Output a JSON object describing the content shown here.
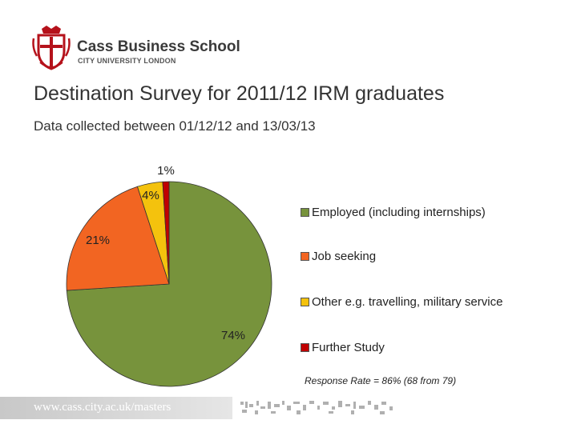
{
  "logo": {
    "name": "Cass Business School",
    "sub": "CITY UNIVERSITY LONDON"
  },
  "header": {
    "title": "Destination Survey for 2011/12 IRM graduates",
    "subtitle": "Data collected between 01/12/12 and 13/03/13"
  },
  "chart_data": {
    "type": "pie",
    "title": "",
    "slices": [
      {
        "name": "Employed (including internships)",
        "value": 74,
        "label": "74%",
        "color": "#77933c"
      },
      {
        "name": "Job seeking",
        "value": 21,
        "label": "21%",
        "color": "#f26522"
      },
      {
        "name": "Other e.g. travelling, military service",
        "value": 4,
        "label": "4%",
        "color": "#f4c20d"
      },
      {
        "name": "Further Study",
        "value": 1,
        "label": "1%",
        "color": "#c00000"
      }
    ],
    "legend_position": "right",
    "note": "Response Rate = 86% (68 from 79)"
  },
  "footer": {
    "url": "www.cass.city.ac.uk/masters"
  },
  "colors": {
    "brand_red": "#b5121b",
    "footer_grey": "#c8c8c8"
  }
}
